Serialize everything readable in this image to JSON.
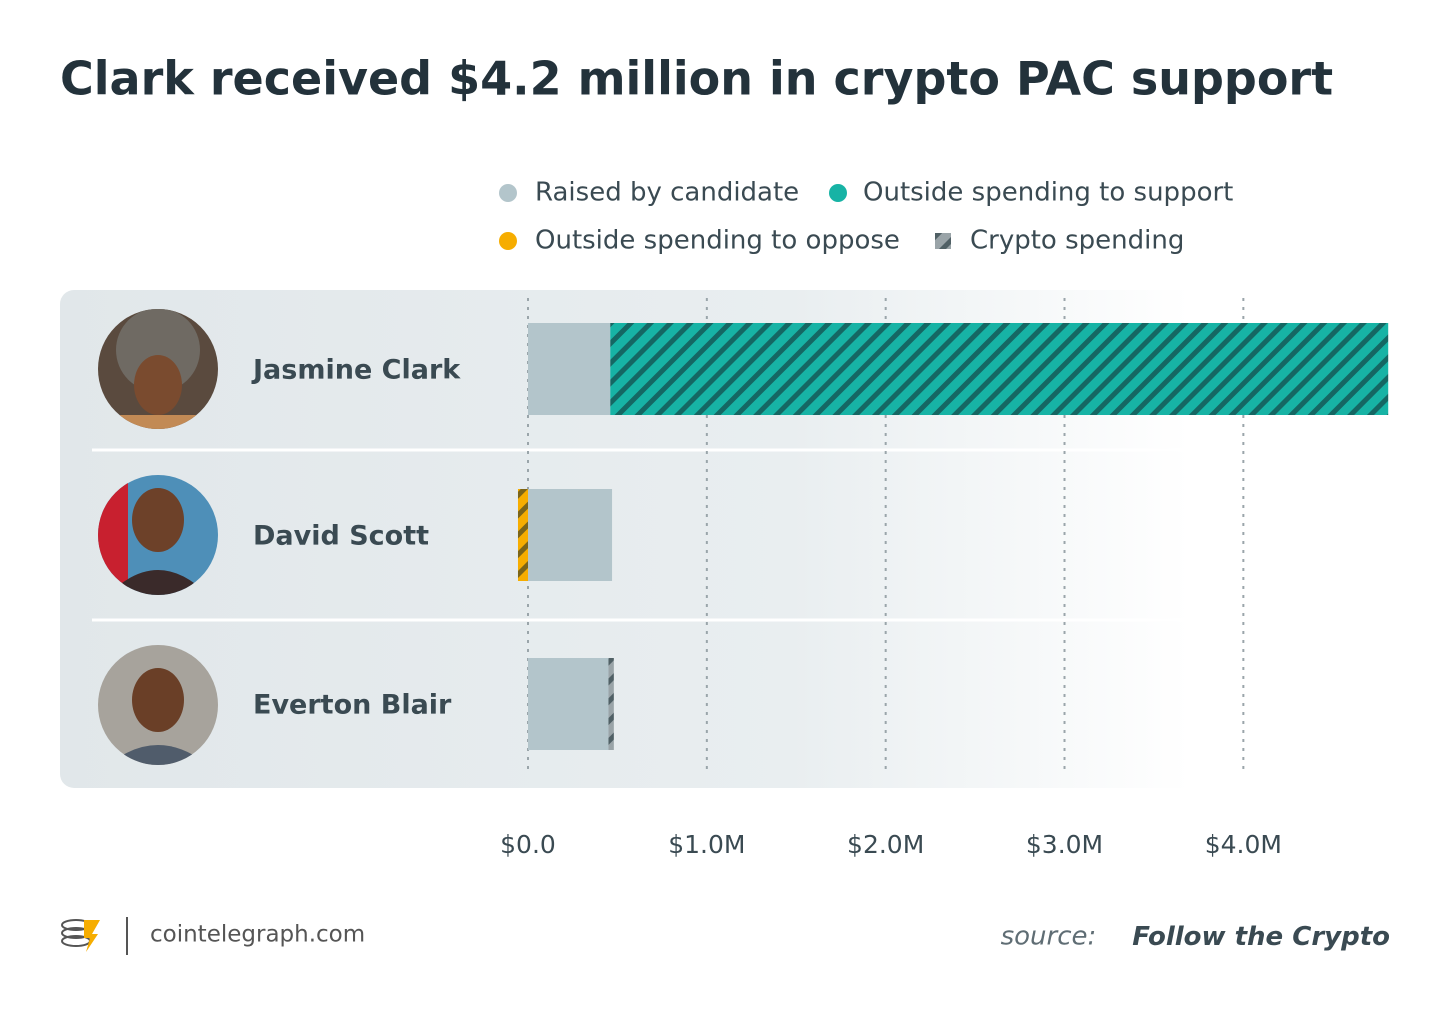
{
  "chart_data": {
    "type": "hbar",
    "title": "Clark received $4.2 million in crypto PAC support",
    "categories": [
      "Jasmine Clark",
      "David Scott",
      "Everton Blair"
    ],
    "series": [
      {
        "name": "Raised by candidate",
        "color": "#b3c5cb",
        "hatch": false,
        "values": [
          0.46,
          0.47,
          0.45
        ]
      },
      {
        "name": "Outside spending to support",
        "color": "#17b3a5",
        "hatch": true,
        "values": [
          4.35,
          0,
          0
        ]
      },
      {
        "name": "Outside spending to oppose",
        "color": "#f6ad00",
        "hatch": true,
        "values": [
          0,
          -0.056,
          0
        ]
      },
      {
        "name": "Crypto spending",
        "color": "#9aa4a8",
        "hatch": true,
        "values": [
          0,
          0,
          0.03
        ]
      }
    ],
    "xlim": [
      0,
      4.82
    ],
    "xticks": [
      {
        "value": 0,
        "label": "$0.0"
      },
      {
        "value": 1,
        "label": "$1.0M"
      },
      {
        "value": 2,
        "label": "$2.0M"
      },
      {
        "value": 3,
        "label": "$3.0M"
      },
      {
        "value": 4,
        "label": "$4.0M"
      }
    ],
    "grid": true,
    "footer": "cointelegraph.com",
    "source_label": "source:",
    "source": "Follow the Crypto"
  }
}
